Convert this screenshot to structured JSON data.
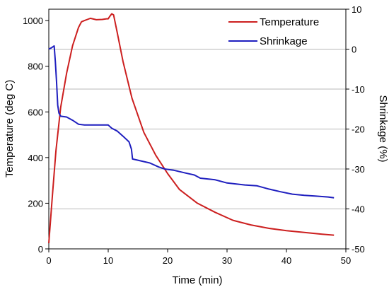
{
  "chart_data": {
    "type": "line",
    "title": "",
    "xlabel": "Time (min)",
    "ylabel": "Temperature (deg C)",
    "y2label": "Shrinkage (%)",
    "xlim": [
      0,
      50
    ],
    "ylim": [
      0,
      1050
    ],
    "y2lim": [
      -50,
      10
    ],
    "x_ticks": [
      0,
      10,
      20,
      30,
      40,
      50
    ],
    "y_ticks": [
      0,
      200,
      400,
      600,
      800,
      1000
    ],
    "y2_ticks": [
      10,
      0,
      -10,
      -20,
      -30,
      -40,
      -50
    ],
    "grid": "horizontal",
    "legend_position": "top-right",
    "series": [
      {
        "name": "Temperature",
        "axis": "left",
        "color": "#cc1f1f",
        "x": [
          0,
          0.6,
          1.2,
          2.0,
          3.0,
          4.0,
          5.0,
          5.5,
          6.0,
          6.5,
          7.0,
          8.0,
          9.0,
          9.7,
          10.0,
          10.3,
          10.6,
          10.9,
          11.5,
          12.5,
          14.0,
          16.0,
          18.0,
          20.0,
          22.0,
          25.0,
          28.0,
          31.0,
          34.0,
          37.0,
          40.0,
          43.0,
          46.0,
          48.0
        ],
        "y": [
          25,
          230,
          430,
          620,
          770,
          890,
          970,
          995,
          1000,
          1005,
          1010,
          1004,
          1005,
          1008,
          1008,
          1020,
          1030,
          1025,
          950,
          820,
          660,
          510,
          410,
          330,
          260,
          200,
          160,
          125,
          105,
          90,
          80,
          72,
          64,
          60
        ]
      },
      {
        "name": "Shrinkage",
        "axis": "right",
        "color": "#1f1fbf",
        "x": [
          0,
          0.4,
          0.9,
          1.1,
          1.3,
          1.5,
          1.7,
          2.0,
          3.0,
          4.0,
          5.0,
          6.0,
          8.0,
          10.0,
          10.6,
          11.5,
          12.5,
          13.5,
          13.9,
          14.1,
          15.0,
          17.0,
          18.5,
          19.5,
          21.0,
          23.0,
          24.5,
          25.5,
          28.0,
          30.0,
          33.0,
          35.0,
          37.0,
          39.0,
          41.0,
          43.0,
          45.0,
          47.0,
          48.0
        ],
        "y": [
          0,
          0.3,
          0.8,
          -3,
          -8,
          -14,
          -16,
          -16.8,
          -17,
          -17.8,
          -18.8,
          -19,
          -19,
          -19,
          -19.8,
          -20.5,
          -21.8,
          -23.2,
          -25,
          -27.5,
          -27.8,
          -28.5,
          -29.5,
          -30,
          -30.3,
          -31,
          -31.5,
          -32.3,
          -32.7,
          -33.5,
          -34,
          -34.2,
          -35,
          -35.7,
          -36.3,
          -36.6,
          -36.8,
          -37,
          -37.2
        ]
      }
    ]
  }
}
